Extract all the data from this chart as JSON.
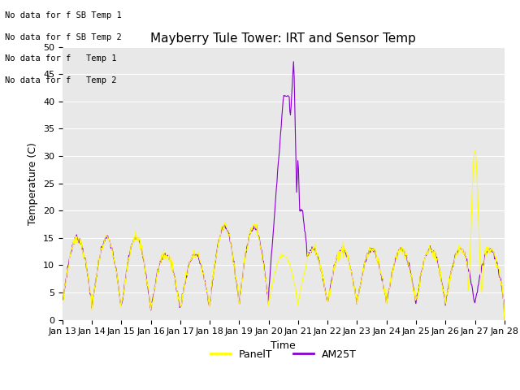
{
  "title": "Mayberry Tule Tower: IRT and Sensor Temp",
  "ylabel": "Temperature (C)",
  "xlabel": "Time",
  "ylim": [
    0,
    50
  ],
  "yticks": [
    0,
    5,
    10,
    15,
    20,
    25,
    30,
    35,
    40,
    45,
    50
  ],
  "xtick_labels": [
    "Jan 13",
    "Jan 14",
    "Jan 15",
    "Jan 16",
    "Jan 17",
    "Jan 18",
    "Jan 19",
    "Jan 20",
    "Jan 21",
    "Jan 22",
    "Jan 23",
    "Jan 24",
    "Jan 25",
    "Jan 26",
    "Jan 27",
    "Jan 28"
  ],
  "panel_color": "#ffff00",
  "am25t_color": "#8800cc",
  "no_data_texts": [
    "No data for f SB Temp 1",
    "No data for f SB Temp 2",
    "No data for f   Temp 1",
    "No data for f   Temp 2"
  ],
  "legend_labels": [
    "PanelT",
    "AM25T"
  ],
  "plot_bg_color": "#e8e8e8",
  "fig_bg_color": "#ffffff",
  "title_fontsize": 11,
  "axis_fontsize": 9,
  "tick_fontsize": 8
}
